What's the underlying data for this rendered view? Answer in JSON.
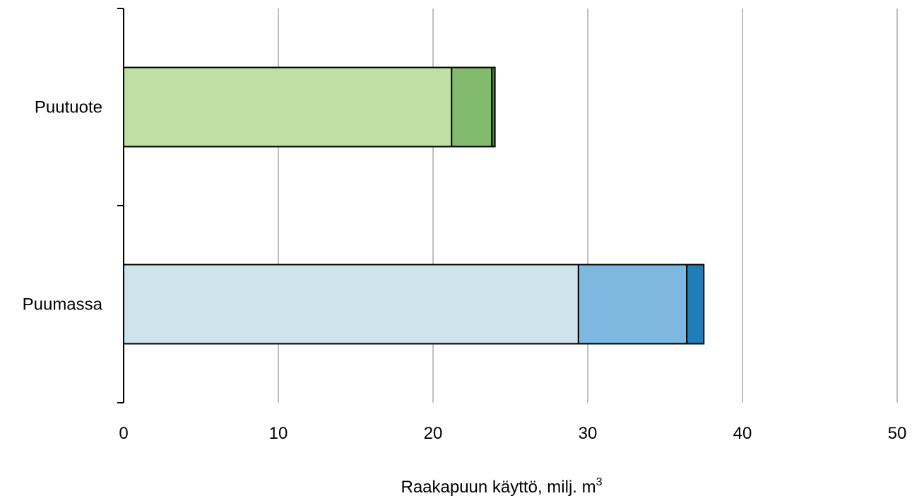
{
  "chart_data": {
    "type": "bar",
    "orientation": "horizontal",
    "stacked": true,
    "categories": [
      "Puutuote",
      "Puumassa"
    ],
    "segments": [
      {
        "category": "Puutuote",
        "values": [
          21.2,
          2.6,
          0.2
        ],
        "colors": [
          "#bfe0a3",
          "#82bb6e",
          "#4e8a3f"
        ]
      },
      {
        "category": "Puumassa",
        "values": [
          29.4,
          7.0,
          1.1
        ],
        "colors": [
          "#cfe3ea",
          "#7db8e0",
          "#1f7dba"
        ]
      }
    ],
    "xlim": [
      0,
      50
    ],
    "xticks": [
      "0",
      "10",
      "20",
      "30",
      "40",
      "50"
    ],
    "xlabel": "Raakapuun käyttö, milj. m",
    "xlabel_superscript": "3",
    "grid": "vertical"
  }
}
